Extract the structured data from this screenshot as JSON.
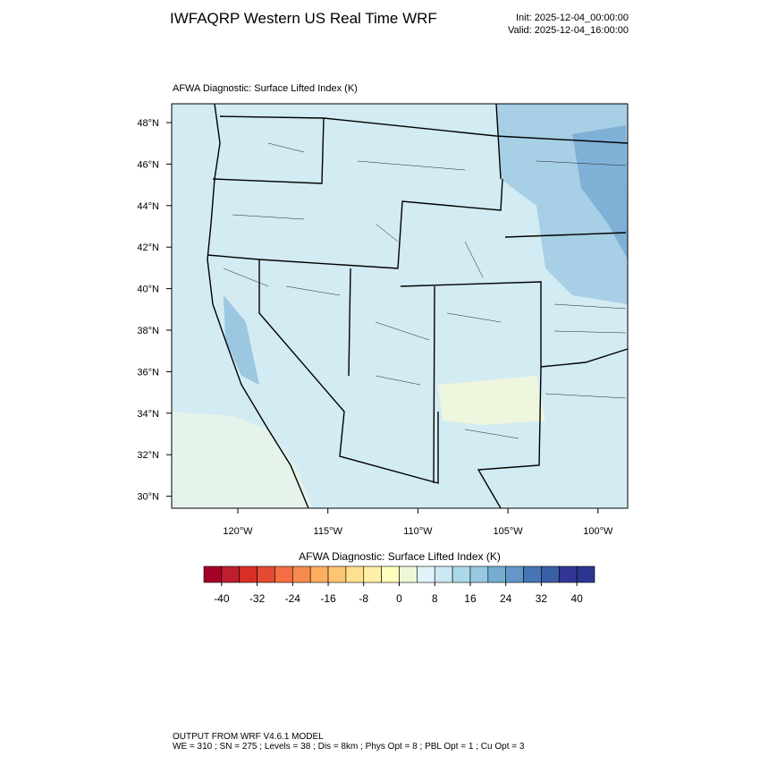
{
  "header": {
    "title": "IWFAQRP Western US Real Time WRF",
    "init": "Init: 2025-12-04_00:00:00",
    "valid": "Valid: 2025-12-04_16:00:00"
  },
  "map": {
    "subtitle": "AFWA Diagnostic: Surface Lifted Index   (K)",
    "lat_labels": [
      "48°N",
      "46°N",
      "44°N",
      "42°N",
      "40°N",
      "38°N",
      "36°N",
      "34°N",
      "32°N",
      "30°N"
    ],
    "lon_labels": [
      "120°W",
      "115°W",
      "110°W",
      "105°W",
      "100°W"
    ]
  },
  "colorbar": {
    "title": "AFWA Diagnostic: Surface Lifted Index  (K)",
    "range": [
      -44,
      44
    ],
    "colors": [
      "#a50026",
      "#be1e2d",
      "#d73027",
      "#e34a33",
      "#f46d43",
      "#f68b4e",
      "#fdae61",
      "#fdc473",
      "#fee090",
      "#fef0a8",
      "#ffffbf",
      "#eef8d6",
      "#e0f3f8",
      "#cce8f2",
      "#abd9e9",
      "#98c8e0",
      "#74add1",
      "#6497c8",
      "#4575b4",
      "#3a5fa6",
      "#313695",
      "#2c3590"
    ],
    "ticks": [
      -40,
      -32,
      -24,
      -16,
      -8,
      0,
      8,
      16,
      24,
      32,
      40
    ]
  },
  "footer": {
    "line1": "OUTPUT FROM WRF V4.6.1 MODEL",
    "line2": "WE = 310 ; SN = 275 ; Levels = 38 ; Dis = 8km ; Phys Opt = 8 ; PBL Opt = 1 ; Cu Opt = 3"
  }
}
